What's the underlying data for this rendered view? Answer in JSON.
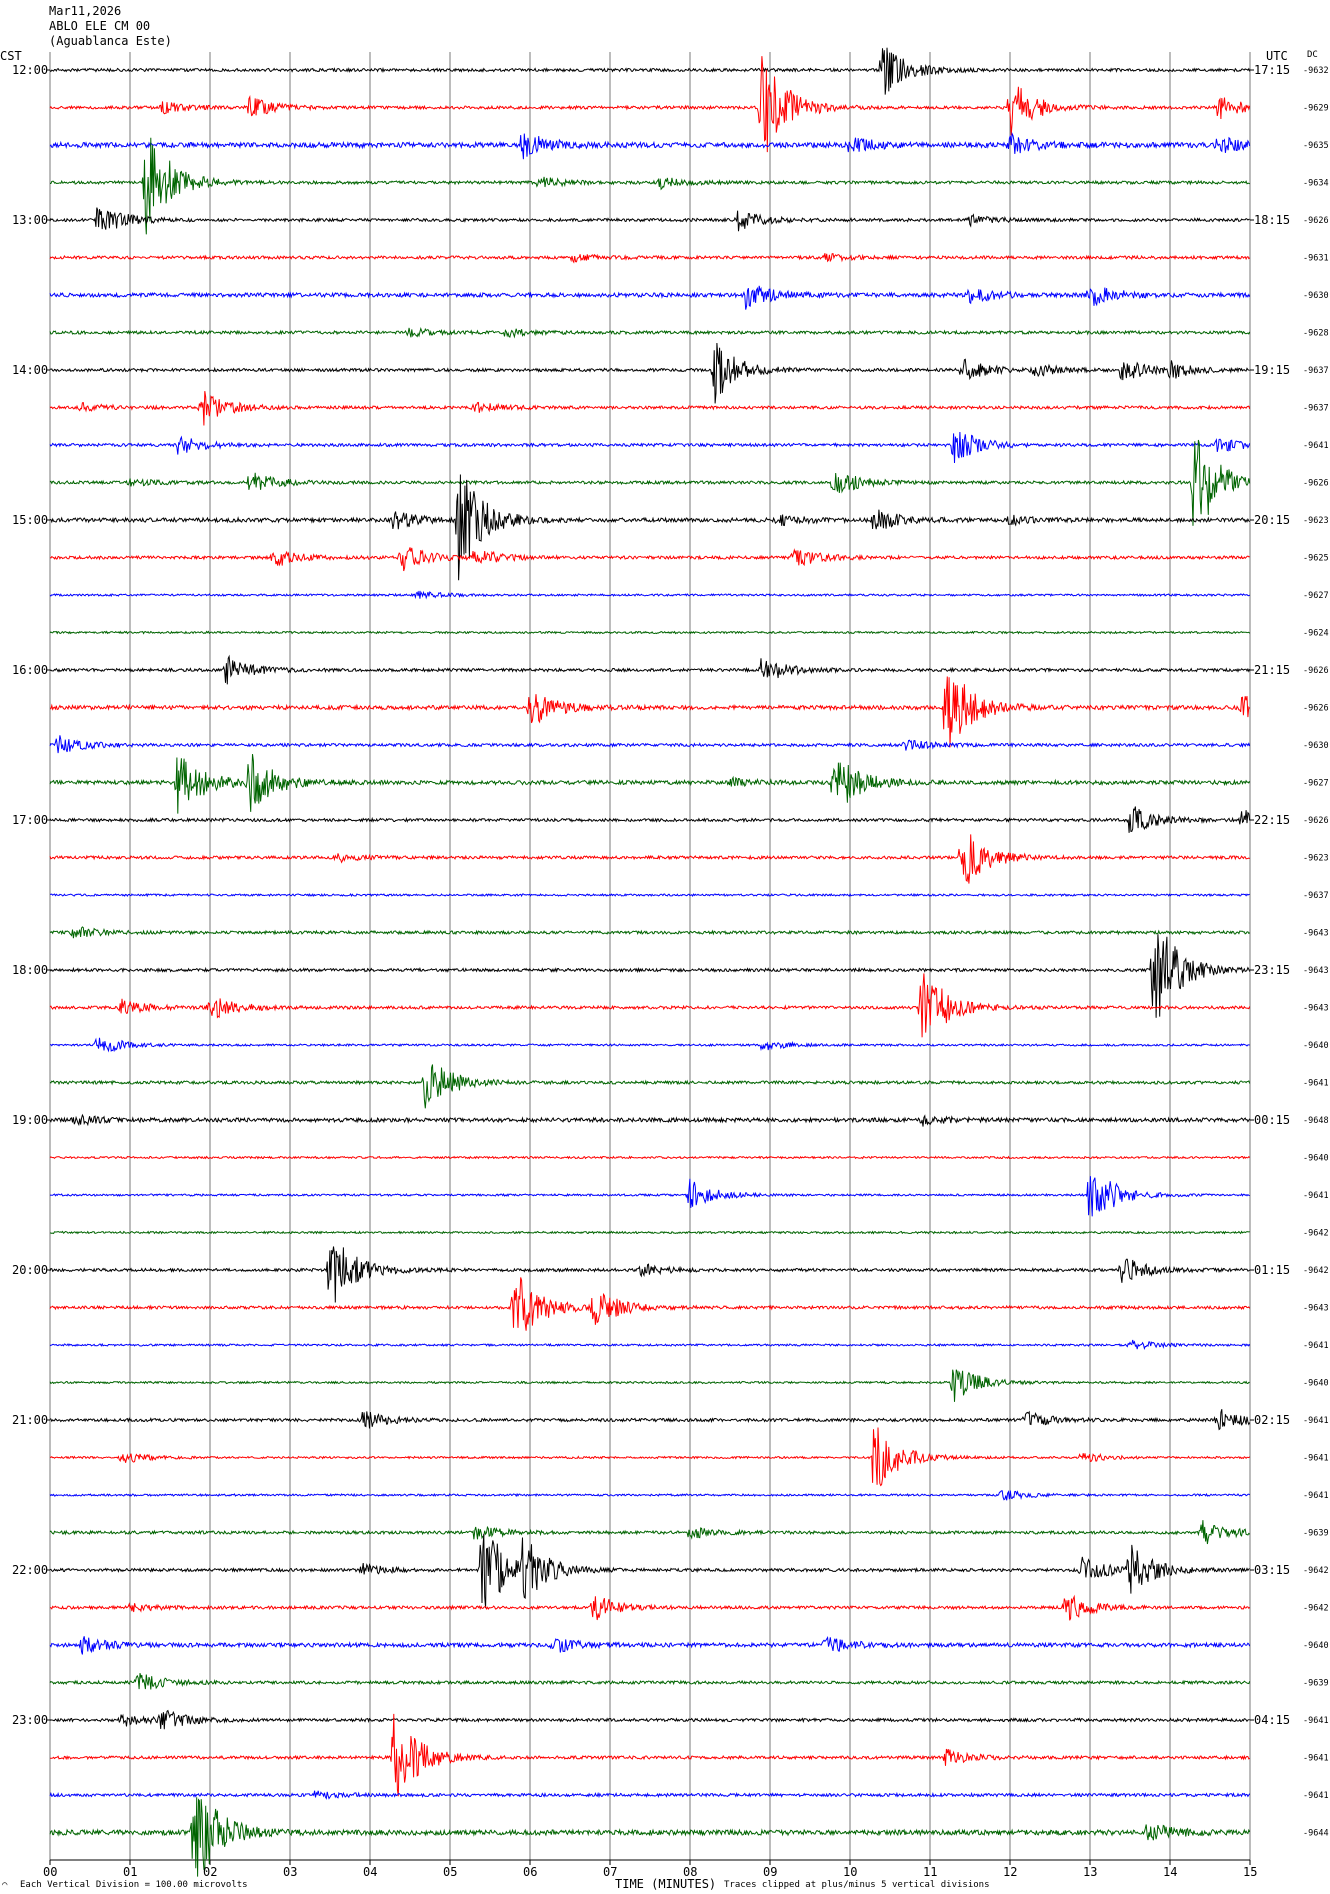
{
  "header": {
    "date": "Mar11,2026",
    "station": "ABLO ELE CM 00",
    "location": "(Aguablanca Este)"
  },
  "axes": {
    "left_tz": "CST",
    "right_tz": "UTC",
    "dc_label": "DC",
    "x_title": "TIME (MINUTES)"
  },
  "footer": {
    "left_note": "Each Vertical Division = 100.00 microvolts",
    "right_note": "Traces clipped at plus/minus 5 vertical divisions",
    "corner_mark": "⌒"
  },
  "colors": [
    "#000000",
    "#ff0000",
    "#0000ff",
    "#006400"
  ],
  "chart_data": {
    "type": "line",
    "xlabel": "TIME (MINUTES)",
    "xlim": [
      0,
      15
    ],
    "x_ticks": [
      "00",
      "01",
      "02",
      "03",
      "04",
      "05",
      "06",
      "07",
      "08",
      "09",
      "10",
      "11",
      "12",
      "13",
      "14",
      "15"
    ],
    "rows_per_hour": 4,
    "left_hour_labels": [
      "12:00",
      "13:00",
      "14:00",
      "15:00",
      "16:00",
      "17:00",
      "18:00",
      "19:00",
      "20:00",
      "21:00",
      "22:00",
      "23:00"
    ],
    "right_hour_labels": [
      "17:15",
      "18:15",
      "19:15",
      "20:15",
      "21:15",
      "22:15",
      "23:15",
      "00:15",
      "01:15",
      "02:15",
      "03:15",
      "04:15"
    ],
    "dc_offsets": [
      "-9632",
      "-9629",
      "-9635",
      "-9634",
      "-9626",
      "-9631",
      "-9630",
      "-9628",
      "-9637",
      "-9637",
      "-9641",
      "-9626",
      "-9623",
      "-9625",
      "-9627",
      "-9624",
      "-9626",
      "-9626",
      "-9630",
      "-9627",
      "-9626",
      "-9623",
      "-9637",
      "-9643",
      "-9643",
      "-9643",
      "-9640",
      "-9641",
      "-9648",
      "-9640",
      "-9641",
      "-9642",
      "-9642",
      "-9643",
      "-9641",
      "-9640",
      "-9641",
      "-9641",
      "-9641",
      "-9639",
      "-9642",
      "-9642",
      "-9640",
      "-9639",
      "-9641",
      "-9641",
      "-9641",
      "-9644"
    ],
    "noise_amplitude": [
      1.5,
      1.5,
      2.5,
      1.5,
      1.5,
      1.5,
      2,
      1.5,
      1.5,
      1.5,
      1.5,
      1.5,
      2,
      1.5,
      1,
      1,
      1.5,
      2,
      1.5,
      2,
      1.5,
      1.5,
      1,
      1.5,
      1.5,
      1.5,
      1,
      1.5,
      2,
      1,
      1,
      1,
      1.5,
      1.5,
      1,
      1,
      1.5,
      1,
      1,
      1.5,
      1.5,
      1.5,
      2,
      1.5,
      1.5,
      1.5,
      1.5,
      2.5
    ],
    "events": [
      {
        "row": 0,
        "minute": 10.4,
        "amplitude": 28
      },
      {
        "row": 1,
        "minute": 8.9,
        "amplitude": 60
      },
      {
        "row": 1,
        "minute": 12.0,
        "amplitude": 30
      },
      {
        "row": 1,
        "minute": 1.4,
        "amplitude": 6
      },
      {
        "row": 1,
        "minute": 2.5,
        "amplitude": 10
      },
      {
        "row": 1,
        "minute": 14.6,
        "amplitude": 12
      },
      {
        "row": 2,
        "minute": 5.9,
        "amplitude": 14
      },
      {
        "row": 2,
        "minute": 10.0,
        "amplitude": 8
      },
      {
        "row": 2,
        "minute": 12.0,
        "amplitude": 10
      },
      {
        "row": 2,
        "minute": 14.6,
        "amplitude": 8
      },
      {
        "row": 3,
        "minute": 1.2,
        "amplitude": 60
      },
      {
        "row": 3,
        "minute": 6.1,
        "amplitude": 6
      },
      {
        "row": 3,
        "minute": 7.6,
        "amplitude": 6
      },
      {
        "row": 4,
        "minute": 0.6,
        "amplitude": 18
      },
      {
        "row": 4,
        "minute": 8.6,
        "amplitude": 10
      },
      {
        "row": 4,
        "minute": 11.5,
        "amplitude": 5
      },
      {
        "row": 5,
        "minute": 6.5,
        "amplitude": 4
      },
      {
        "row": 5,
        "minute": 9.7,
        "amplitude": 4
      },
      {
        "row": 6,
        "minute": 8.7,
        "amplitude": 14
      },
      {
        "row": 6,
        "minute": 11.5,
        "amplitude": 8
      },
      {
        "row": 6,
        "minute": 13.0,
        "amplitude": 12
      },
      {
        "row": 7,
        "minute": 4.5,
        "amplitude": 4
      },
      {
        "row": 7,
        "minute": 5.7,
        "amplitude": 4
      },
      {
        "row": 8,
        "minute": 8.3,
        "amplitude": 34
      },
      {
        "row": 8,
        "minute": 11.4,
        "amplitude": 12
      },
      {
        "row": 8,
        "minute": 12.3,
        "amplitude": 6
      },
      {
        "row": 8,
        "minute": 13.4,
        "amplitude": 12
      },
      {
        "row": 8,
        "minute": 14.0,
        "amplitude": 8
      },
      {
        "row": 9,
        "minute": 1.9,
        "amplitude": 18
      },
      {
        "row": 9,
        "minute": 5.3,
        "amplitude": 6
      },
      {
        "row": 9,
        "minute": 0.4,
        "amplitude": 4
      },
      {
        "row": 10,
        "minute": 1.6,
        "amplitude": 10
      },
      {
        "row": 10,
        "minute": 11.3,
        "amplitude": 18
      },
      {
        "row": 10,
        "minute": 14.6,
        "amplitude": 8
      },
      {
        "row": 11,
        "minute": 14.3,
        "amplitude": 60
      },
      {
        "row": 11,
        "minute": 2.5,
        "amplitude": 12
      },
      {
        "row": 11,
        "minute": 9.8,
        "amplitude": 14
      },
      {
        "row": 11,
        "minute": 1.0,
        "amplitude": 4
      },
      {
        "row": 12,
        "minute": 5.1,
        "amplitude": 60
      },
      {
        "row": 12,
        "minute": 4.3,
        "amplitude": 10
      },
      {
        "row": 12,
        "minute": 10.3,
        "amplitude": 12
      },
      {
        "row": 12,
        "minute": 9.1,
        "amplitude": 5
      },
      {
        "row": 12,
        "minute": 12.0,
        "amplitude": 4
      },
      {
        "row": 13,
        "minute": 2.8,
        "amplitude": 10
      },
      {
        "row": 13,
        "minute": 4.4,
        "amplitude": 14
      },
      {
        "row": 13,
        "minute": 5.3,
        "amplitude": 10
      },
      {
        "row": 13,
        "minute": 9.3,
        "amplitude": 10
      },
      {
        "row": 14,
        "minute": 4.6,
        "amplitude": 4
      },
      {
        "row": 16,
        "minute": 2.2,
        "amplitude": 14
      },
      {
        "row": 16,
        "minute": 8.9,
        "amplitude": 14
      },
      {
        "row": 17,
        "minute": 6.0,
        "amplitude": 20
      },
      {
        "row": 17,
        "minute": 11.2,
        "amplitude": 50
      },
      {
        "row": 17,
        "minute": 14.9,
        "amplitude": 12
      },
      {
        "row": 18,
        "minute": 0.1,
        "amplitude": 10
      },
      {
        "row": 18,
        "minute": 10.7,
        "amplitude": 5
      },
      {
        "row": 19,
        "minute": 1.6,
        "amplitude": 36
      },
      {
        "row": 19,
        "minute": 2.5,
        "amplitude": 30
      },
      {
        "row": 19,
        "minute": 9.8,
        "amplitude": 34
      },
      {
        "row": 19,
        "minute": 8.5,
        "amplitude": 4
      },
      {
        "row": 20,
        "minute": 13.5,
        "amplitude": 16
      },
      {
        "row": 20,
        "minute": 14.9,
        "amplitude": 10
      },
      {
        "row": 21,
        "minute": 11.4,
        "amplitude": 34
      },
      {
        "row": 21,
        "minute": 3.6,
        "amplitude": 4
      },
      {
        "row": 23,
        "minute": 0.3,
        "amplitude": 6
      },
      {
        "row": 24,
        "minute": 13.8,
        "amplitude": 60
      },
      {
        "row": 25,
        "minute": 10.9,
        "amplitude": 44
      },
      {
        "row": 25,
        "minute": 2.0,
        "amplitude": 14
      },
      {
        "row": 25,
        "minute": 0.9,
        "amplitude": 8
      },
      {
        "row": 26,
        "minute": 0.6,
        "amplitude": 10
      },
      {
        "row": 26,
        "minute": 8.9,
        "amplitude": 6
      },
      {
        "row": 27,
        "minute": 4.7,
        "amplitude": 30
      },
      {
        "row": 28,
        "minute": 10.9,
        "amplitude": 5
      },
      {
        "row": 28,
        "minute": 0.3,
        "amplitude": 5
      },
      {
        "row": 30,
        "minute": 13.0,
        "amplitude": 34
      },
      {
        "row": 30,
        "minute": 8.0,
        "amplitude": 16
      },
      {
        "row": 32,
        "minute": 3.5,
        "amplitude": 40
      },
      {
        "row": 32,
        "minute": 13.4,
        "amplitude": 14
      },
      {
        "row": 32,
        "minute": 7.4,
        "amplitude": 6
      },
      {
        "row": 33,
        "minute": 5.8,
        "amplitude": 44
      },
      {
        "row": 33,
        "minute": 6.8,
        "amplitude": 20
      },
      {
        "row": 34,
        "minute": 13.5,
        "amplitude": 5
      },
      {
        "row": 35,
        "minute": 11.3,
        "amplitude": 20
      },
      {
        "row": 36,
        "minute": 3.9,
        "amplitude": 10
      },
      {
        "row": 36,
        "minute": 12.2,
        "amplitude": 8
      },
      {
        "row": 36,
        "minute": 14.6,
        "amplitude": 12
      },
      {
        "row": 37,
        "minute": 10.3,
        "amplitude": 40
      },
      {
        "row": 37,
        "minute": 0.9,
        "amplitude": 6
      },
      {
        "row": 37,
        "minute": 12.9,
        "amplitude": 5
      },
      {
        "row": 38,
        "minute": 11.9,
        "amplitude": 6
      },
      {
        "row": 39,
        "minute": 14.4,
        "amplitude": 14
      },
      {
        "row": 39,
        "minute": 5.3,
        "amplitude": 8
      },
      {
        "row": 39,
        "minute": 8.0,
        "amplitude": 6
      },
      {
        "row": 40,
        "minute": 5.4,
        "amplitude": 50
      },
      {
        "row": 40,
        "minute": 5.9,
        "amplitude": 30
      },
      {
        "row": 40,
        "minute": 13.5,
        "amplitude": 24
      },
      {
        "row": 40,
        "minute": 12.9,
        "amplitude": 14
      },
      {
        "row": 40,
        "minute": 3.9,
        "amplitude": 6
      },
      {
        "row": 41,
        "minute": 6.8,
        "amplitude": 14
      },
      {
        "row": 41,
        "minute": 12.7,
        "amplitude": 14
      },
      {
        "row": 41,
        "minute": 1.0,
        "amplitude": 4
      },
      {
        "row": 42,
        "minute": 0.4,
        "amplitude": 8
      },
      {
        "row": 42,
        "minute": 6.3,
        "amplitude": 8
      },
      {
        "row": 42,
        "minute": 9.7,
        "amplitude": 8
      },
      {
        "row": 43,
        "minute": 1.1,
        "amplitude": 10
      },
      {
        "row": 44,
        "minute": 1.4,
        "amplitude": 10
      },
      {
        "row": 44,
        "minute": 0.9,
        "amplitude": 6
      },
      {
        "row": 45,
        "minute": 4.3,
        "amplitude": 50
      },
      {
        "row": 45,
        "minute": 11.2,
        "amplitude": 8
      },
      {
        "row": 46,
        "minute": 3.3,
        "amplitude": 4
      },
      {
        "row": 47,
        "minute": 1.8,
        "amplitude": 60
      },
      {
        "row": 47,
        "minute": 13.7,
        "amplitude": 10
      }
    ]
  }
}
